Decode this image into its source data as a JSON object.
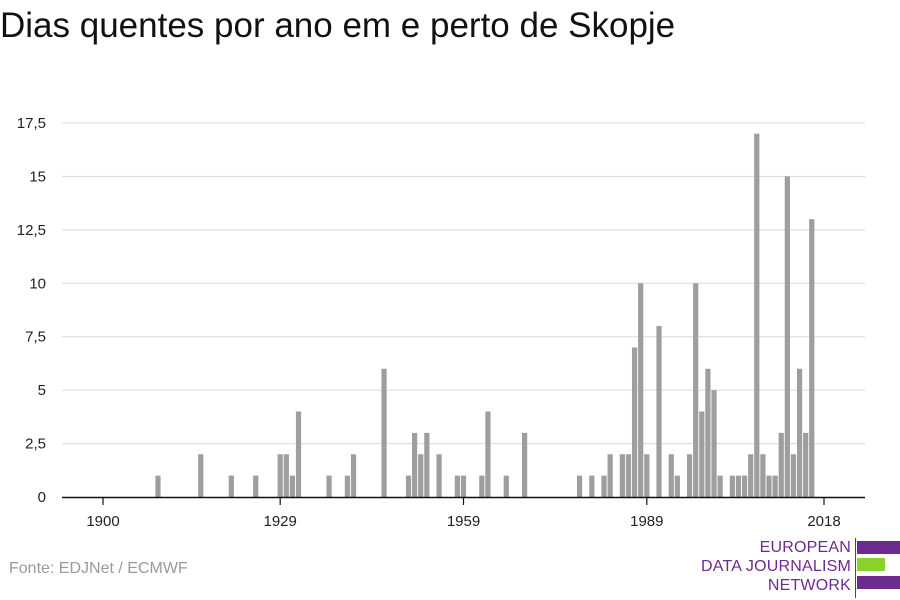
{
  "title": "Dias quentes por ano em e perto de Skopje",
  "source": "Fonte: EDJNet / ECMWF",
  "logo": {
    "lines": [
      "EUROPEAN",
      "DATA JOURNALISM",
      "NETWORK"
    ],
    "purple": "#6e2b8f",
    "green": "#8bd12e"
  },
  "colors": {
    "bar": "#9e9e9e",
    "grid": "#d9d9d9",
    "axis": "#111111"
  },
  "chart_data": {
    "type": "bar",
    "title": "Dias quentes por ano em e perto de Skopje",
    "xlabel": "",
    "ylabel": "",
    "xlim": [
      1900,
      2018
    ],
    "ylim": [
      0,
      17.5
    ],
    "xticks": [
      "1900",
      "1929",
      "1959",
      "1989",
      "2018"
    ],
    "yticks": [
      "0",
      "2,5",
      "5",
      "7,5",
      "10",
      "12,5",
      "15",
      "17,5"
    ],
    "grid": true,
    "x": [
      1909,
      1916,
      1921,
      1925,
      1929,
      1930,
      1931,
      1932,
      1937,
      1940,
      1941,
      1946,
      1950,
      1951,
      1952,
      1953,
      1955,
      1958,
      1959,
      1962,
      1963,
      1966,
      1969,
      1978,
      1980,
      1982,
      1983,
      1985,
      1986,
      1987,
      1988,
      1989,
      1991,
      1993,
      1994,
      1996,
      1997,
      1998,
      1999,
      2000,
      2001,
      2003,
      2004,
      2005,
      2006,
      2007,
      2008,
      2009,
      2010,
      2011,
      2012,
      2013,
      2014,
      2015,
      2016,
      2017
    ],
    "values": [
      1,
      2,
      1,
      1,
      2,
      2,
      1,
      4,
      1,
      1,
      2,
      6,
      1,
      3,
      2,
      3,
      2,
      1,
      1,
      1,
      4,
      1,
      3,
      1,
      1,
      1,
      2,
      2,
      2,
      7,
      10,
      2,
      8,
      2,
      1,
      2,
      10,
      4,
      6,
      5,
      1,
      1,
      1,
      1,
      2,
      17,
      2,
      1,
      1,
      3,
      15,
      2,
      6,
      3,
      13,
      0
    ]
  }
}
